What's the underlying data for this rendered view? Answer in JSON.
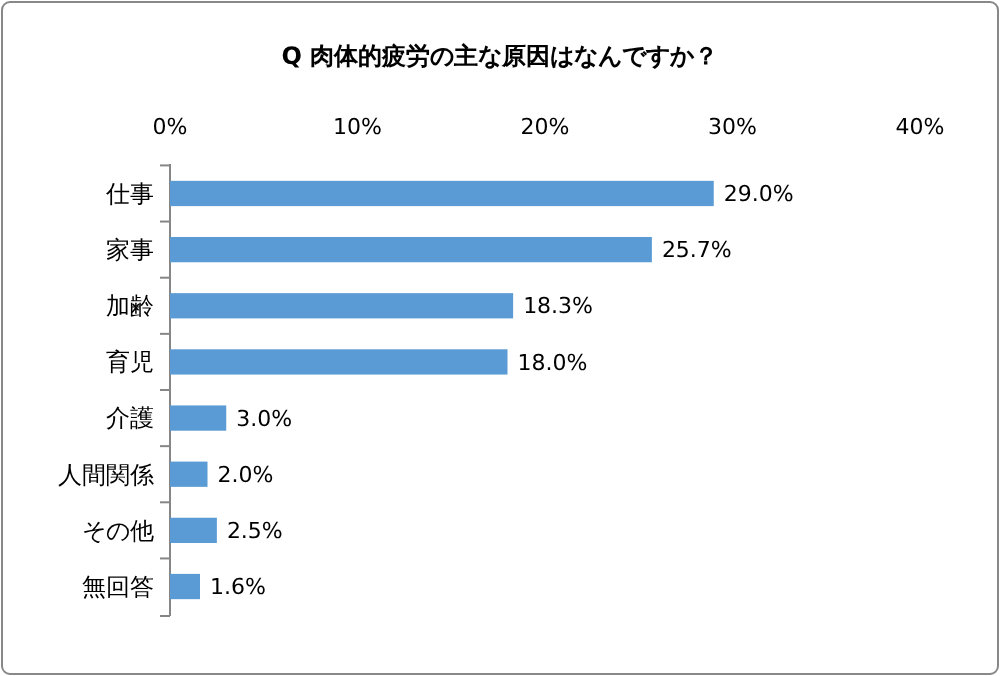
{
  "chart_data": {
    "type": "bar",
    "orientation": "horizontal",
    "title": "Q 肉体的疲労の主な原因はなんですか？",
    "categories": [
      "仕事",
      "家事",
      "加齢",
      "育児",
      "介護",
      "人間関係",
      "その他",
      "無回答"
    ],
    "values": [
      29.0,
      25.7,
      18.3,
      18.0,
      3.0,
      2.0,
      2.5,
      1.6
    ],
    "value_labels": [
      "29.0%",
      "25.7%",
      "18.3%",
      "18.0%",
      "3.0%",
      "2.0%",
      "2.5%",
      "1.6%"
    ],
    "color": "#5b9bd5",
    "xlim": [
      0,
      40
    ],
    "xticks": [
      {
        "value": 0,
        "label": "0%"
      },
      {
        "value": 10,
        "label": "10%"
      },
      {
        "value": 20,
        "label": "20%"
      },
      {
        "value": 30,
        "label": "30%"
      },
      {
        "value": 40,
        "label": "40%"
      }
    ],
    "grid": false
  }
}
